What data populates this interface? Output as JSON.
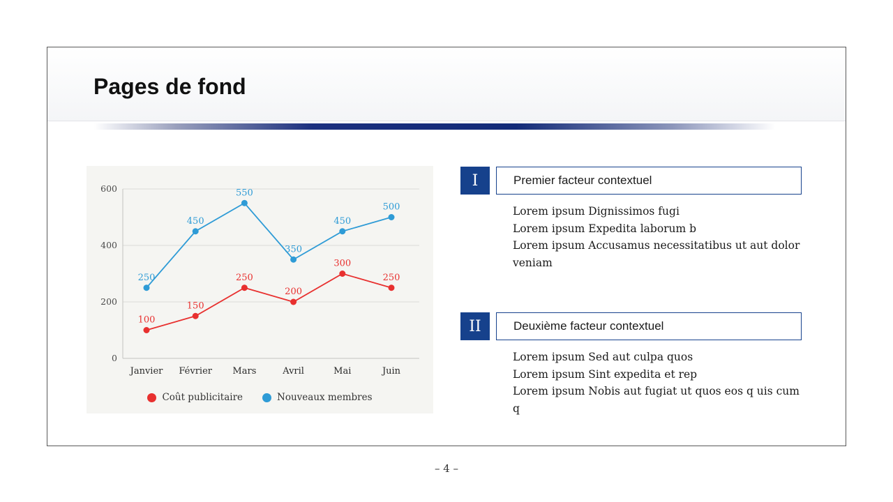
{
  "slide": {
    "title": "Pages de fond",
    "page_number": "– 4 –"
  },
  "sections": [
    {
      "numeral": "I",
      "heading": "Premier facteur contextuel",
      "body_lines": [
        "Lorem ipsum Dignissimos fugi",
        "Lorem ipsum Expedita laborum b",
        "Lorem ipsum Accusamus necessitatibus ut aut dolor veniam"
      ]
    },
    {
      "numeral": "II",
      "heading": "Deuxième facteur contextuel",
      "body_lines": [
        "Lorem ipsum Sed aut culpa quos",
        "Lorem ipsum Sint expedita et rep",
        "Lorem ipsum Nobis aut fugiat ut quos eos q uis cum q"
      ]
    }
  ],
  "chart_data": {
    "type": "line",
    "categories": [
      "Janvier",
      "Février",
      "Mars",
      "Avril",
      "Mai",
      "Juin"
    ],
    "series": [
      {
        "name": "Coût publicitaire",
        "color": "#e8302f",
        "values": [
          100,
          150,
          250,
          200,
          300,
          250
        ]
      },
      {
        "name": "Nouveaux membres",
        "color": "#2e9bd6",
        "values": [
          250,
          450,
          550,
          350,
          450,
          500
        ]
      }
    ],
    "ylim": [
      0,
      600
    ],
    "yticks": [
      0,
      200,
      400,
      600
    ],
    "grid": true,
    "data_labels": true,
    "legend_position": "bottom"
  },
  "colors": {
    "accent_blue": "#16418c",
    "red_series": "#e8302f",
    "blue_series": "#2e9bd6",
    "chart_background": "#f5f5f2"
  }
}
